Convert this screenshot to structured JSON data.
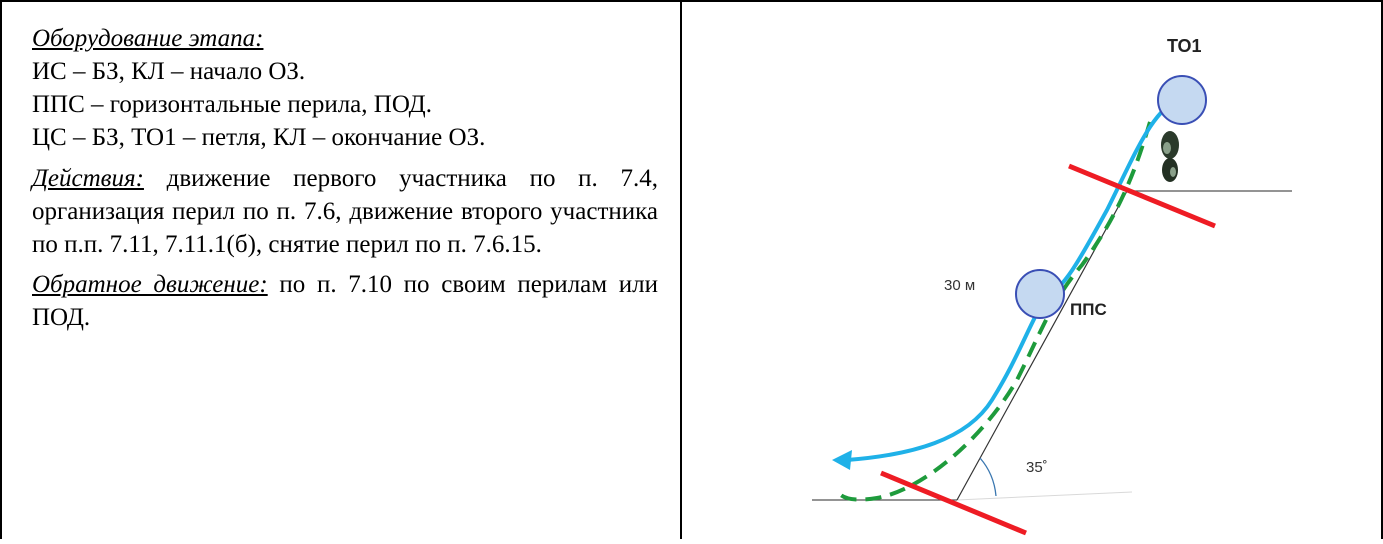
{
  "equipment": {
    "heading": "Оборудование этапа:",
    "lines": [
      "ИС – БЗ, КЛ – начало ОЗ.",
      "ППС – горизонтальные перила, ПОД.",
      "ЦС – БЗ, ТО1 – петля, КЛ – окончание ОЗ."
    ]
  },
  "actions": {
    "heading": "Действия:",
    "text": " движение первого участника по п. 7.4, организация перил по п. 7.6, движение второго участника по п.п. 7.11, 7.11.1(б), снятие перил по п. 7.6.15."
  },
  "return_move": {
    "heading": "Обратное движение:",
    "text": " по п. 7.10 по своим перилам или ПОД."
  },
  "diagram": {
    "top_label": "ТО1",
    "length_label": "30 м",
    "slope_label": "ППС",
    "angle_label": "35˚",
    "colors": {
      "rope": "#1fb1e8",
      "path": "#1e9b3c",
      "boundary": "#ee1c24",
      "node": "#c5d9f1",
      "node_stroke": "#3a4fb5"
    }
  }
}
